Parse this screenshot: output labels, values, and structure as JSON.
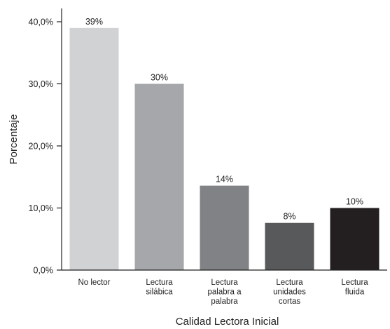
{
  "chart_data": {
    "type": "bar",
    "categories": [
      [
        "No lector"
      ],
      [
        "Lectura",
        "silábica"
      ],
      [
        "Lectura",
        "palabra a",
        "palabra"
      ],
      [
        "Lectura",
        "unidades",
        "cortas"
      ],
      [
        "Lectura",
        "fluida"
      ]
    ],
    "values": [
      39,
      30,
      13.6,
      7.6,
      10
    ],
    "data_labels": [
      "39%",
      "30%",
      "14%",
      "8%",
      "10%"
    ],
    "bar_colors": [
      "#d1d2d4",
      "#a6a7aa",
      "#818285",
      "#58595b",
      "#231f20"
    ],
    "xlabel": "Calidad Lectora Inicial",
    "ylabel": "Porcentaje",
    "ylim": [
      0,
      40
    ],
    "yticks": [
      0,
      10,
      20,
      30,
      40
    ],
    "ytick_labels": [
      "0,0%",
      "10,0%",
      "20,0%",
      "30,0%",
      "40,0%"
    ],
    "grid": false,
    "legend": "none"
  }
}
